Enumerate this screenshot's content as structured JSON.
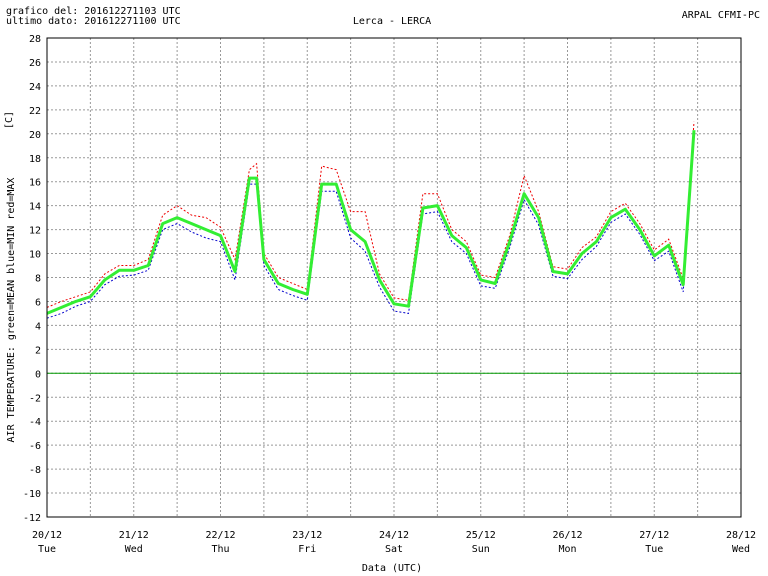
{
  "header": {
    "left_line1": "grafico del: 201612271103 UTC",
    "left_line2": "ultimo dato: 201612271100 UTC",
    "center": "Lerca - LERCA",
    "right": "ARPAL CFMI-PC"
  },
  "colors": {
    "mean": "#33ee33",
    "min": "#0000cc",
    "max": "#ee0000",
    "zero_line": "#009900",
    "grid": "#999999"
  },
  "chart_data": {
    "type": "line",
    "title": "Lerca - LERCA",
    "xlabel": "Data (UTC)",
    "ylabel": "AIR TEMPERATURE: green=MEAN  blue=MIN  red=MAX",
    "yunit": "[C]",
    "ylim": [
      -12,
      28
    ],
    "yticks": [
      28,
      26,
      24,
      22,
      20,
      18,
      16,
      14,
      12,
      10,
      8,
      6,
      4,
      2,
      0,
      -2,
      -4,
      -6,
      -8,
      -10,
      -12
    ],
    "xticks": [
      {
        "date": "20/12",
        "day": "Tue"
      },
      {
        "date": "21/12",
        "day": "Wed"
      },
      {
        "date": "22/12",
        "day": "Thu"
      },
      {
        "date": "23/12",
        "day": "Fri"
      },
      {
        "date": "24/12",
        "day": "Sat"
      },
      {
        "date": "25/12",
        "day": "Sun"
      },
      {
        "date": "26/12",
        "day": "Mon"
      },
      {
        "date": "27/12",
        "day": "Tue"
      },
      {
        "date": "28/12",
        "day": "Wed"
      }
    ],
    "grid": true,
    "series": [
      {
        "name": "MEAN",
        "x": [
          "2016-12-20 00:00",
          "2016-12-20 04:00",
          "2016-12-20 08:00",
          "2016-12-20 12:00",
          "2016-12-20 16:00",
          "2016-12-20 20:00",
          "2016-12-21 00:00",
          "2016-12-21 04:00",
          "2016-12-21 08:00",
          "2016-12-21 12:00",
          "2016-12-21 16:00",
          "2016-12-21 20:00",
          "2016-12-22 00:00",
          "2016-12-22 04:00",
          "2016-12-22 08:00",
          "2016-12-22 10:00",
          "2016-12-22 12:00",
          "2016-12-22 16:00",
          "2016-12-22 20:00",
          "2016-12-23 00:00",
          "2016-12-23 04:00",
          "2016-12-23 08:00",
          "2016-12-23 12:00",
          "2016-12-23 16:00",
          "2016-12-23 20:00",
          "2016-12-24 00:00",
          "2016-12-24 04:00",
          "2016-12-24 08:00",
          "2016-12-24 12:00",
          "2016-12-24 16:00",
          "2016-12-24 20:00",
          "2016-12-25 00:00",
          "2016-12-25 04:00",
          "2016-12-25 08:00",
          "2016-12-25 12:00",
          "2016-12-25 16:00",
          "2016-12-25 20:00",
          "2016-12-26 00:00",
          "2016-12-26 04:00",
          "2016-12-26 08:00",
          "2016-12-26 12:00",
          "2016-12-26 16:00",
          "2016-12-26 20:00",
          "2016-12-27 00:00",
          "2016-12-27 04:00",
          "2016-12-27 08:00",
          "2016-12-27 11:00"
        ],
        "y": [
          5.0,
          5.5,
          6.0,
          6.4,
          7.8,
          8.6,
          8.6,
          9.0,
          12.5,
          13.0,
          12.5,
          12.0,
          11.5,
          8.5,
          16.3,
          16.3,
          9.5,
          7.5,
          7.0,
          6.6,
          15.8,
          15.8,
          12.0,
          11.0,
          7.8,
          5.8,
          5.6,
          13.8,
          14.0,
          11.5,
          10.5,
          7.8,
          7.5,
          11.0,
          15.0,
          13.0,
          8.5,
          8.3,
          10.0,
          11.0,
          13.0,
          13.7,
          12.0,
          9.8,
          10.7,
          7.4,
          20.3
        ]
      },
      {
        "name": "MIN",
        "x": [
          "2016-12-20 00:00",
          "2016-12-20 04:00",
          "2016-12-20 08:00",
          "2016-12-20 12:00",
          "2016-12-20 16:00",
          "2016-12-20 20:00",
          "2016-12-21 00:00",
          "2016-12-21 04:00",
          "2016-12-21 08:00",
          "2016-12-21 12:00",
          "2016-12-21 16:00",
          "2016-12-21 20:00",
          "2016-12-22 00:00",
          "2016-12-22 04:00",
          "2016-12-22 08:00",
          "2016-12-22 10:00",
          "2016-12-22 12:00",
          "2016-12-22 16:00",
          "2016-12-22 20:00",
          "2016-12-23 00:00",
          "2016-12-23 04:00",
          "2016-12-23 08:00",
          "2016-12-23 12:00",
          "2016-12-23 16:00",
          "2016-12-23 20:00",
          "2016-12-24 00:00",
          "2016-12-24 04:00",
          "2016-12-24 08:00",
          "2016-12-24 12:00",
          "2016-12-24 16:00",
          "2016-12-24 20:00",
          "2016-12-25 00:00",
          "2016-12-25 04:00",
          "2016-12-25 08:00",
          "2016-12-25 12:00",
          "2016-12-25 16:00",
          "2016-12-25 20:00",
          "2016-12-26 00:00",
          "2016-12-26 04:00",
          "2016-12-26 08:00",
          "2016-12-26 12:00",
          "2016-12-26 16:00",
          "2016-12-26 20:00",
          "2016-12-27 00:00",
          "2016-12-27 04:00",
          "2016-12-27 08:00",
          "2016-12-27 11:00"
        ],
        "y": [
          4.6,
          5.0,
          5.6,
          6.0,
          7.4,
          8.1,
          8.2,
          8.6,
          12.0,
          12.5,
          11.8,
          11.3,
          11.0,
          7.8,
          15.8,
          15.8,
          9.0,
          7.0,
          6.5,
          6.1,
          15.2,
          15.2,
          11.3,
          10.2,
          7.2,
          5.2,
          5.0,
          13.3,
          13.5,
          11.0,
          10.0,
          7.3,
          7.1,
          10.5,
          14.5,
          12.4,
          8.1,
          7.9,
          9.5,
          10.6,
          12.6,
          13.3,
          11.6,
          9.4,
          10.2,
          6.8,
          19.5
        ]
      },
      {
        "name": "MAX",
        "x": [
          "2016-12-20 00:00",
          "2016-12-20 04:00",
          "2016-12-20 08:00",
          "2016-12-20 12:00",
          "2016-12-20 16:00",
          "2016-12-20 20:00",
          "2016-12-21 00:00",
          "2016-12-21 04:00",
          "2016-12-21 08:00",
          "2016-12-21 12:00",
          "2016-12-21 16:00",
          "2016-12-21 20:00",
          "2016-12-22 00:00",
          "2016-12-22 04:00",
          "2016-12-22 08:00",
          "2016-12-22 10:00",
          "2016-12-22 12:00",
          "2016-12-22 16:00",
          "2016-12-22 20:00",
          "2016-12-23 00:00",
          "2016-12-23 04:00",
          "2016-12-23 08:00",
          "2016-12-23 12:00",
          "2016-12-23 16:00",
          "2016-12-23 20:00",
          "2016-12-24 00:00",
          "2016-12-24 04:00",
          "2016-12-24 08:00",
          "2016-12-24 12:00",
          "2016-12-24 16:00",
          "2016-12-24 20:00",
          "2016-12-25 00:00",
          "2016-12-25 04:00",
          "2016-12-25 08:00",
          "2016-12-25 12:00",
          "2016-12-25 16:00",
          "2016-12-25 20:00",
          "2016-12-26 00:00",
          "2016-12-26 04:00",
          "2016-12-26 08:00",
          "2016-12-26 12:00",
          "2016-12-26 16:00",
          "2016-12-26 20:00",
          "2016-12-27 00:00",
          "2016-12-27 04:00",
          "2016-12-27 08:00",
          "2016-12-27 11:00"
        ],
        "y": [
          5.5,
          6.0,
          6.4,
          6.8,
          8.3,
          9.0,
          9.0,
          9.5,
          13.2,
          14.0,
          13.2,
          13.0,
          12.2,
          9.5,
          17.0,
          17.5,
          10.0,
          8.0,
          7.5,
          7.0,
          17.3,
          17.0,
          13.5,
          13.5,
          8.3,
          6.3,
          6.1,
          15.0,
          15.0,
          12.0,
          11.0,
          8.2,
          8.0,
          11.5,
          16.5,
          13.5,
          8.9,
          8.7,
          10.5,
          11.4,
          13.5,
          14.2,
          12.5,
          10.3,
          11.2,
          7.9,
          21.0
        ]
      }
    ]
  }
}
